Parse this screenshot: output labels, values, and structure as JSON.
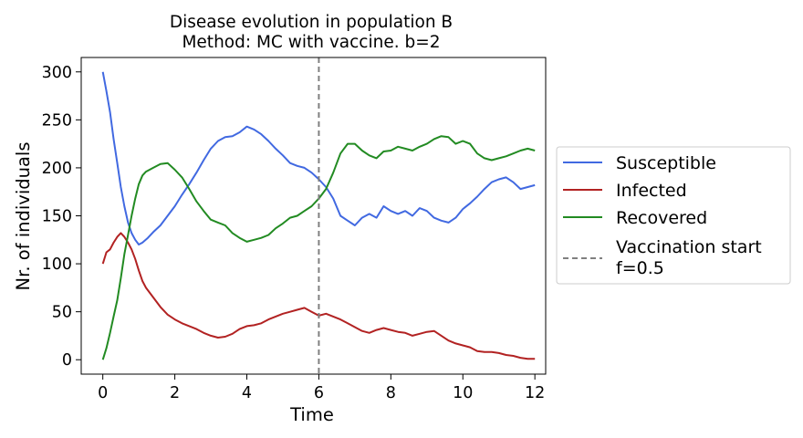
{
  "chart_data": {
    "type": "line",
    "title": "Disease evolution in population B",
    "subtitle": "Method: MC with vaccine. b=2",
    "xlabel": "Time",
    "ylabel": "Nr. of individuals",
    "xlim": [
      -0.6,
      12.3
    ],
    "ylim": [
      -15,
      315
    ],
    "xticks": [
      0,
      2,
      4,
      6,
      8,
      10,
      12
    ],
    "yticks": [
      0,
      50,
      100,
      150,
      200,
      250,
      300
    ],
    "grid": false,
    "legend_position": "outside-right",
    "vline": {
      "x": 6,
      "label": "Vaccination start f=0.5",
      "label_lines": [
        "Vaccination start",
        "f=0.5"
      ],
      "color": "#808080",
      "style": "dashed"
    },
    "series": [
      {
        "name": "Susceptible",
        "color": "#4169e1",
        "points": [
          [
            0,
            300
          ],
          [
            0.1,
            280
          ],
          [
            0.2,
            258
          ],
          [
            0.3,
            230
          ],
          [
            0.4,
            205
          ],
          [
            0.5,
            180
          ],
          [
            0.6,
            160
          ],
          [
            0.7,
            143
          ],
          [
            0.8,
            132
          ],
          [
            0.9,
            125
          ],
          [
            1.0,
            120
          ],
          [
            1.1,
            122
          ],
          [
            1.25,
            127
          ],
          [
            1.4,
            133
          ],
          [
            1.6,
            140
          ],
          [
            1.8,
            150
          ],
          [
            2.0,
            160
          ],
          [
            2.2,
            172
          ],
          [
            2.4,
            183
          ],
          [
            2.6,
            195
          ],
          [
            2.8,
            208
          ],
          [
            3.0,
            220
          ],
          [
            3.2,
            228
          ],
          [
            3.4,
            232
          ],
          [
            3.6,
            233
          ],
          [
            3.8,
            237
          ],
          [
            4.0,
            243
          ],
          [
            4.2,
            240
          ],
          [
            4.4,
            235
          ],
          [
            4.6,
            228
          ],
          [
            4.8,
            220
          ],
          [
            5.0,
            213
          ],
          [
            5.2,
            205
          ],
          [
            5.4,
            202
          ],
          [
            5.6,
            200
          ],
          [
            5.8,
            195
          ],
          [
            6.0,
            188
          ],
          [
            6.2,
            180
          ],
          [
            6.4,
            168
          ],
          [
            6.6,
            150
          ],
          [
            6.8,
            145
          ],
          [
            7.0,
            140
          ],
          [
            7.2,
            148
          ],
          [
            7.4,
            152
          ],
          [
            7.6,
            148
          ],
          [
            7.8,
            160
          ],
          [
            8.0,
            155
          ],
          [
            8.2,
            152
          ],
          [
            8.4,
            155
          ],
          [
            8.6,
            150
          ],
          [
            8.8,
            158
          ],
          [
            9.0,
            155
          ],
          [
            9.2,
            148
          ],
          [
            9.4,
            145
          ],
          [
            9.6,
            143
          ],
          [
            9.8,
            148
          ],
          [
            10.0,
            157
          ],
          [
            10.2,
            163
          ],
          [
            10.4,
            170
          ],
          [
            10.6,
            178
          ],
          [
            10.8,
            185
          ],
          [
            11.0,
            188
          ],
          [
            11.2,
            190
          ],
          [
            11.4,
            185
          ],
          [
            11.6,
            178
          ],
          [
            11.8,
            180
          ],
          [
            12.0,
            182
          ]
        ]
      },
      {
        "name": "Infected",
        "color": "#b22222",
        "points": [
          [
            0,
            100
          ],
          [
            0.1,
            112
          ],
          [
            0.2,
            115
          ],
          [
            0.3,
            122
          ],
          [
            0.4,
            128
          ],
          [
            0.5,
            132
          ],
          [
            0.6,
            128
          ],
          [
            0.7,
            122
          ],
          [
            0.8,
            115
          ],
          [
            0.9,
            105
          ],
          [
            1.0,
            93
          ],
          [
            1.1,
            82
          ],
          [
            1.2,
            75
          ],
          [
            1.4,
            65
          ],
          [
            1.6,
            55
          ],
          [
            1.8,
            47
          ],
          [
            2.0,
            42
          ],
          [
            2.2,
            38
          ],
          [
            2.4,
            35
          ],
          [
            2.6,
            32
          ],
          [
            2.8,
            28
          ],
          [
            3.0,
            25
          ],
          [
            3.2,
            23
          ],
          [
            3.4,
            24
          ],
          [
            3.6,
            27
          ],
          [
            3.8,
            32
          ],
          [
            4.0,
            35
          ],
          [
            4.2,
            36
          ],
          [
            4.4,
            38
          ],
          [
            4.6,
            42
          ],
          [
            4.8,
            45
          ],
          [
            5.0,
            48
          ],
          [
            5.2,
            50
          ],
          [
            5.4,
            52
          ],
          [
            5.6,
            54
          ],
          [
            5.8,
            50
          ],
          [
            6.0,
            46
          ],
          [
            6.2,
            48
          ],
          [
            6.4,
            45
          ],
          [
            6.6,
            42
          ],
          [
            6.8,
            38
          ],
          [
            7.0,
            34
          ],
          [
            7.2,
            30
          ],
          [
            7.4,
            28
          ],
          [
            7.6,
            31
          ],
          [
            7.8,
            33
          ],
          [
            8.0,
            31
          ],
          [
            8.2,
            29
          ],
          [
            8.4,
            28
          ],
          [
            8.6,
            25
          ],
          [
            8.8,
            27
          ],
          [
            9.0,
            29
          ],
          [
            9.2,
            30
          ],
          [
            9.4,
            25
          ],
          [
            9.6,
            20
          ],
          [
            9.8,
            17
          ],
          [
            10.0,
            15
          ],
          [
            10.2,
            13
          ],
          [
            10.4,
            9
          ],
          [
            10.6,
            8
          ],
          [
            10.8,
            8
          ],
          [
            11.0,
            7
          ],
          [
            11.2,
            5
          ],
          [
            11.4,
            4
          ],
          [
            11.6,
            2
          ],
          [
            11.8,
            1
          ],
          [
            12.0,
            1
          ]
        ]
      },
      {
        "name": "Recovered",
        "color": "#228b22",
        "points": [
          [
            0,
            0
          ],
          [
            0.1,
            12
          ],
          [
            0.2,
            28
          ],
          [
            0.3,
            45
          ],
          [
            0.4,
            62
          ],
          [
            0.5,
            85
          ],
          [
            0.6,
            110
          ],
          [
            0.7,
            130
          ],
          [
            0.8,
            150
          ],
          [
            0.9,
            168
          ],
          [
            1.0,
            183
          ],
          [
            1.1,
            192
          ],
          [
            1.2,
            196
          ],
          [
            1.4,
            200
          ],
          [
            1.6,
            204
          ],
          [
            1.8,
            205
          ],
          [
            2.0,
            198
          ],
          [
            2.2,
            190
          ],
          [
            2.4,
            178
          ],
          [
            2.6,
            165
          ],
          [
            2.8,
            155
          ],
          [
            3.0,
            146
          ],
          [
            3.2,
            143
          ],
          [
            3.4,
            140
          ],
          [
            3.6,
            132
          ],
          [
            3.8,
            127
          ],
          [
            4.0,
            123
          ],
          [
            4.2,
            125
          ],
          [
            4.4,
            127
          ],
          [
            4.6,
            130
          ],
          [
            4.8,
            137
          ],
          [
            5.0,
            142
          ],
          [
            5.2,
            148
          ],
          [
            5.4,
            150
          ],
          [
            5.6,
            155
          ],
          [
            5.8,
            160
          ],
          [
            6.0,
            168
          ],
          [
            6.2,
            178
          ],
          [
            6.4,
            195
          ],
          [
            6.6,
            215
          ],
          [
            6.8,
            225
          ],
          [
            7.0,
            225
          ],
          [
            7.2,
            218
          ],
          [
            7.4,
            213
          ],
          [
            7.6,
            210
          ],
          [
            7.8,
            217
          ],
          [
            8.0,
            218
          ],
          [
            8.2,
            222
          ],
          [
            8.4,
            220
          ],
          [
            8.6,
            218
          ],
          [
            8.8,
            222
          ],
          [
            9.0,
            225
          ],
          [
            9.2,
            230
          ],
          [
            9.4,
            233
          ],
          [
            9.6,
            232
          ],
          [
            9.8,
            225
          ],
          [
            10.0,
            228
          ],
          [
            10.2,
            225
          ],
          [
            10.4,
            215
          ],
          [
            10.6,
            210
          ],
          [
            10.8,
            208
          ],
          [
            11.0,
            210
          ],
          [
            11.2,
            212
          ],
          [
            11.4,
            215
          ],
          [
            11.6,
            218
          ],
          [
            11.8,
            220
          ],
          [
            12.0,
            218
          ]
        ]
      }
    ]
  }
}
